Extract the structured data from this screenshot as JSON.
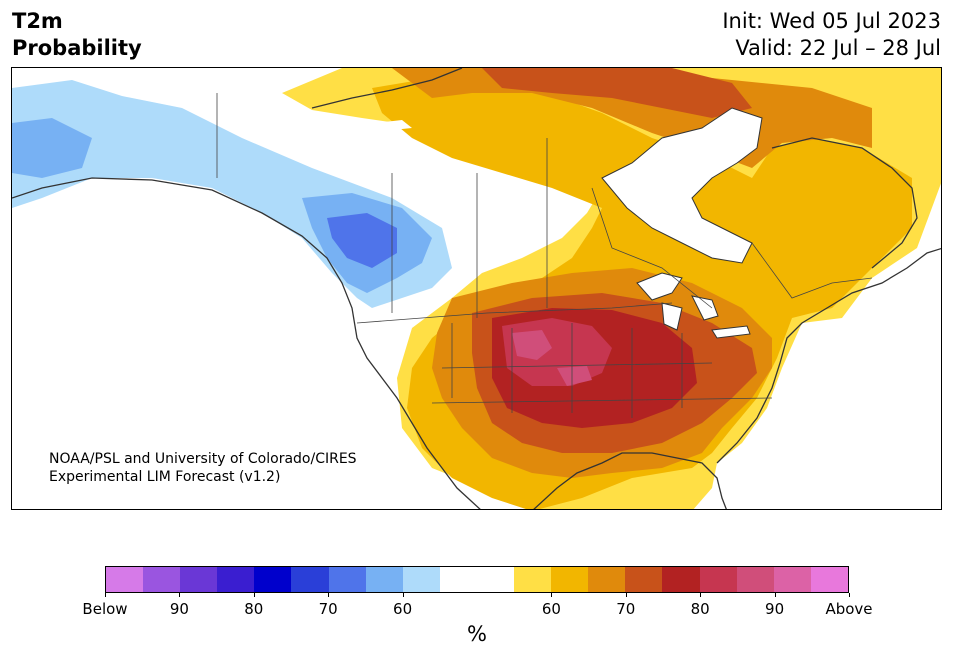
{
  "header": {
    "title_line1": "T2m",
    "title_line2": "Probability",
    "init": "Init: Wed 05 Jul 2023",
    "valid": "Valid: 22 Jul – 28 Jul"
  },
  "credit": {
    "line1": "NOAA/PSL and University of Colorado/CIRES",
    "line2": "Experimental LIM Forecast (v1.2)"
  },
  "colorbar": {
    "unit": "%",
    "colors": [
      "#d67ae8",
      "#9a55e0",
      "#6a37d6",
      "#3a1ed0",
      "#0000cc",
      "#2a3fd8",
      "#4f74ea",
      "#77b1f3",
      "#aedbfa",
      "#ffffff",
      "#ffffff",
      "#ffdf45",
      "#f2b600",
      "#e08a0c",
      "#c8521a",
      "#b22222",
      "#c63650",
      "#d04e7a",
      "#dc62a6",
      "#e878dc"
    ],
    "tick_labels": [
      "Below",
      "90",
      "80",
      "70",
      "60",
      "60",
      "70",
      "80",
      "90",
      "Above"
    ]
  },
  "map": {
    "region": "North America",
    "palette": {
      "cold_light": "#aedbfa",
      "cold_mid": "#77b1f3",
      "cold_dark": "#4f74ea",
      "warm_60": "#ffdf45",
      "warm_65": "#f2b600",
      "warm_70": "#e08a0c",
      "warm_75": "#c8521a",
      "warm_80": "#b22222",
      "warm_85": "#c63650",
      "warm_90": "#d04e7a",
      "border": "#333333"
    }
  }
}
